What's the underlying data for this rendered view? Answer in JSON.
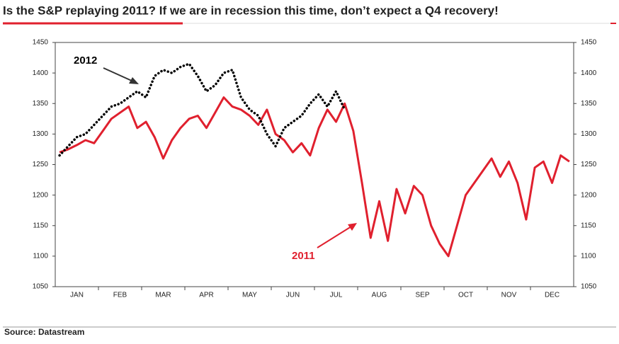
{
  "chart_data": {
    "type": "line",
    "title": "Is the S&P replaying 2011? If we are in recession this time, don’t expect a Q4 recovery!",
    "source": "Source: Datastream",
    "categories": [
      null,
      null,
      "JAN",
      null,
      null,
      null,
      null,
      "FEB",
      null,
      null,
      null,
      null,
      "MAR",
      null,
      null,
      null,
      null,
      "APR",
      null,
      null,
      null,
      null,
      "MAY",
      null,
      null,
      null,
      null,
      "JUN",
      null,
      null,
      null,
      null,
      "JUL",
      null,
      null,
      null,
      null,
      "AUG",
      null,
      null,
      null,
      null,
      "SEP",
      null,
      null,
      null,
      null,
      "OCT",
      null,
      null,
      null,
      null,
      "NOV",
      null,
      null,
      null,
      null,
      "DEC",
      null,
      null
    ],
    "series": [
      {
        "name": "2011",
        "color": "#e0202e",
        "dash": false,
        "values": [
          1270,
          1275,
          1282,
          1290,
          1285,
          1305,
          1325,
          1335,
          1345,
          1310,
          1320,
          1295,
          1260,
          1290,
          1310,
          1325,
          1330,
          1310,
          1335,
          1360,
          1345,
          1340,
          1330,
          1315,
          1340,
          1300,
          1290,
          1270,
          1285,
          1265,
          1310,
          1340,
          1320,
          1350,
          1305,
          1220,
          1130,
          1190,
          1125,
          1210,
          1170,
          1215,
          1200,
          1150,
          1120,
          1100,
          1150,
          1200,
          1220,
          1240,
          1260,
          1230,
          1255,
          1220,
          1160,
          1245,
          1255,
          1220,
          1265,
          1255
        ]
      },
      {
        "name": "2012",
        "color": "#000000",
        "dash": true,
        "values": [
          1265,
          1280,
          1295,
          1300,
          1315,
          1330,
          1345,
          1350,
          1360,
          1370,
          1360,
          1395,
          1405,
          1400,
          1410,
          1415,
          1395,
          1370,
          1380,
          1400,
          1405,
          1360,
          1340,
          1330,
          1300,
          1280,
          1310,
          1320,
          1330,
          1350,
          1365,
          1345,
          1370,
          1340,
          null,
          null,
          null,
          null,
          null,
          null,
          null,
          null,
          null,
          null,
          null,
          null,
          null,
          null,
          null,
          null,
          null,
          null,
          null,
          null,
          null,
          null,
          null,
          null,
          null,
          null
        ]
      }
    ],
    "ylim": [
      1050,
      1450
    ],
    "yticks": [
      1050,
      1100,
      1150,
      1200,
      1250,
      1300,
      1350,
      1400,
      1450
    ],
    "grid": false
  }
}
